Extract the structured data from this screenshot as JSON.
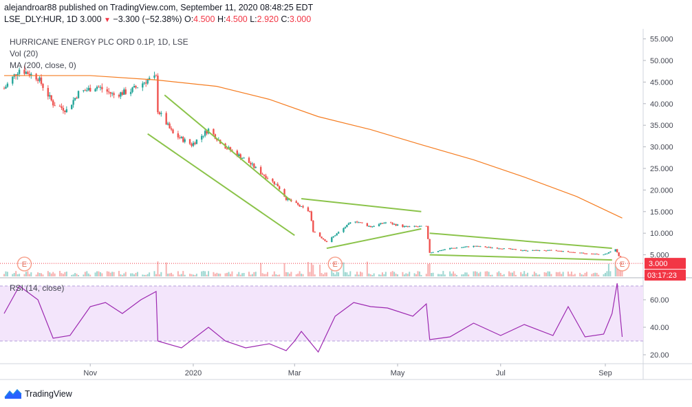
{
  "header": {
    "line1": "alejandroar88 published on TradingView.com, September 11, 2020 08:48:25 EDT",
    "symbol": "LSE_DLY:HUR, 1D",
    "last": "3.000",
    "change": "−3.300 (−52.38%)",
    "o_label": "O:",
    "o": "4.500",
    "h_label": "H:",
    "h": "4.500",
    "l_label": "L:",
    "l": "2.920",
    "c_label": "C:",
    "c": "3.000"
  },
  "legend": {
    "title": "HURRICANE ENERGY PLC ORD 0.1P, 1D, LSE",
    "vol": "Vol (20)",
    "ma": "MA (200, close, 0)",
    "rsi": "RSI (14, close)"
  },
  "price_badge": "3.000",
  "time_badge": "03:17:23",
  "earnings_marker": "E",
  "footer": {
    "brand": "TradingView"
  },
  "colors": {
    "up": "#26a69a",
    "down": "#ef5350",
    "ma": "#f57c20",
    "trendline": "#8bc34a",
    "rsi": "#9c27b0",
    "rsi_band": "#f3e5fb",
    "badge": "#f23645"
  },
  "chart_data": [
    {
      "type": "candlestick",
      "title": "HURRICANE ENERGY PLC ORD 0.1P, 1D, LSE",
      "y_ticks": [
        "5.000",
        "10.000",
        "15.000",
        "20.000",
        "25.000",
        "30.000",
        "35.000",
        "40.000",
        "45.000",
        "50.000",
        "55.000"
      ],
      "x_ticks": [
        "Nov",
        "2020",
        "Mar",
        "May",
        "Jul",
        "Sep"
      ],
      "ylim": [
        0,
        57
      ],
      "close_path": [
        [
          "2019-09-11",
          43.5
        ],
        [
          "2019-09-20",
          48.0
        ],
        [
          "2019-10-01",
          46.0
        ],
        [
          "2019-10-10",
          40.0
        ],
        [
          "2019-10-18",
          38.5
        ],
        [
          "2019-10-25",
          42.5
        ],
        [
          "2019-11-05",
          44.0
        ],
        [
          "2019-11-15",
          42.0
        ],
        [
          "2019-11-25",
          43.0
        ],
        [
          "2019-12-05",
          45.5
        ],
        [
          "2019-12-10",
          46.0
        ],
        [
          "2019-12-11",
          38.5
        ],
        [
          "2019-12-20",
          33.0
        ],
        [
          "2019-12-31",
          30.5
        ],
        [
          "2020-01-10",
          34.0
        ],
        [
          "2020-01-20",
          30.0
        ],
        [
          "2020-02-01",
          27.0
        ],
        [
          "2020-02-10",
          24.0
        ],
        [
          "2020-02-20",
          21.0
        ],
        [
          "2020-02-25",
          18.0
        ],
        [
          "2020-03-01",
          17.0
        ],
        [
          "2020-03-05",
          16.0
        ],
        [
          "2020-03-10",
          15.0
        ],
        [
          "2020-03-12",
          10.5
        ],
        [
          "2020-03-20",
          8.0
        ],
        [
          "2020-03-28",
          10.5
        ],
        [
          "2020-04-05",
          13.0
        ],
        [
          "2020-04-15",
          11.5
        ],
        [
          "2020-04-24",
          12.5
        ],
        [
          "2020-05-05",
          11.5
        ],
        [
          "2020-05-18",
          11.5
        ],
        [
          "2020-05-20",
          5.5
        ],
        [
          "2020-06-01",
          6.5
        ],
        [
          "2020-06-15",
          7.0
        ],
        [
          "2020-07-01",
          6.5
        ],
        [
          "2020-07-15",
          6.0
        ],
        [
          "2020-08-01",
          6.0
        ],
        [
          "2020-08-15",
          5.5
        ],
        [
          "2020-08-31",
          5.0
        ],
        [
          "2020-09-07",
          6.3
        ],
        [
          "2020-09-11",
          3.0
        ]
      ],
      "ma200": [
        [
          "2019-09-11",
          46.5
        ],
        [
          "2019-11-01",
          46.5
        ],
        [
          "2019-12-10",
          45.5
        ],
        [
          "2020-01-15",
          44.0
        ],
        [
          "2020-02-15",
          41.0
        ],
        [
          "2020-03-15",
          37.0
        ],
        [
          "2020-04-15",
          34.0
        ],
        [
          "2020-05-15",
          30.5
        ],
        [
          "2020-06-15",
          27.0
        ],
        [
          "2020-07-15",
          23.0
        ],
        [
          "2020-08-15",
          18.5
        ],
        [
          "2020-09-11",
          13.5
        ]
      ],
      "trendlines": [
        {
          "from": [
            "2019-12-15",
            42.0
          ],
          "to": [
            "2020-02-28",
            17.5
          ]
        },
        {
          "from": [
            "2019-12-05",
            33.0
          ],
          "to": [
            "2020-03-01",
            9.5
          ]
        },
        {
          "from": [
            "2020-03-05",
            18.0
          ],
          "to": [
            "2020-05-15",
            15.0
          ]
        },
        {
          "from": [
            "2020-03-20",
            6.5
          ],
          "to": [
            "2020-05-15",
            11.0
          ]
        },
        {
          "from": [
            "2020-05-20",
            10.0
          ],
          "to": [
            "2020-09-05",
            6.5
          ]
        },
        {
          "from": [
            "2020-05-20",
            5.0
          ],
          "to": [
            "2020-09-05",
            3.8
          ]
        }
      ],
      "last_price": 3.0
    },
    {
      "type": "line",
      "title": "RSI (14, close)",
      "y_ticks": [
        "20.00",
        "40.00",
        "60.00"
      ],
      "ylim": [
        15,
        75
      ],
      "bands": [
        30,
        70
      ],
      "values": [
        [
          "2019-09-11",
          50
        ],
        [
          "2019-09-20",
          70
        ],
        [
          "2019-10-01",
          60
        ],
        [
          "2019-10-10",
          32
        ],
        [
          "2019-10-20",
          34
        ],
        [
          "2019-11-01",
          55
        ],
        [
          "2019-11-10",
          58
        ],
        [
          "2019-11-20",
          50
        ],
        [
          "2019-12-01",
          60
        ],
        [
          "2019-12-10",
          66
        ],
        [
          "2019-12-11",
          30
        ],
        [
          "2019-12-25",
          25
        ],
        [
          "2020-01-10",
          40
        ],
        [
          "2020-01-20",
          30
        ],
        [
          "2020-02-01",
          25
        ],
        [
          "2020-02-15",
          28
        ],
        [
          "2020-02-25",
          23
        ],
        [
          "2020-03-01",
          30
        ],
        [
          "2020-03-05",
          37
        ],
        [
          "2020-03-15",
          22
        ],
        [
          "2020-03-25",
          48
        ],
        [
          "2020-04-05",
          58
        ],
        [
          "2020-04-15",
          55
        ],
        [
          "2020-04-25",
          54
        ],
        [
          "2020-05-10",
          48
        ],
        [
          "2020-05-18",
          57
        ],
        [
          "2020-05-20",
          31
        ],
        [
          "2020-06-01",
          33
        ],
        [
          "2020-06-15",
          43
        ],
        [
          "2020-07-01",
          34
        ],
        [
          "2020-07-15",
          42
        ],
        [
          "2020-08-01",
          34
        ],
        [
          "2020-08-10",
          55
        ],
        [
          "2020-08-20",
          33
        ],
        [
          "2020-08-31",
          35
        ],
        [
          "2020-09-05",
          50
        ],
        [
          "2020-09-08",
          72
        ],
        [
          "2020-09-11",
          33
        ]
      ]
    }
  ]
}
